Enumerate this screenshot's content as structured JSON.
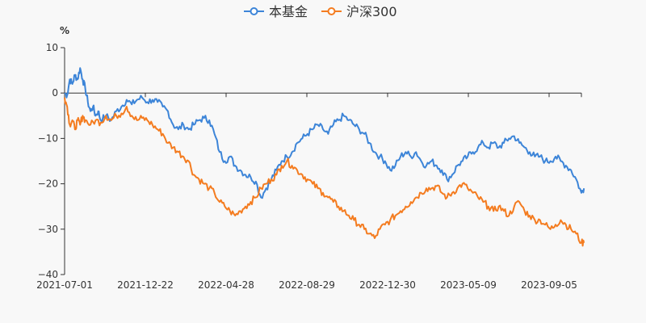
{
  "chart_data": {
    "type": "line",
    "unit": "%",
    "ylim": [
      -40,
      10
    ],
    "yticks": [
      10,
      0,
      -10,
      -20,
      -30,
      -40
    ],
    "xtick_labels": [
      "2021-07-01",
      "2021-12-22",
      "2022-04-28",
      "2022-08-29",
      "2022-12-30",
      "2023-05-09",
      "2023-09-05"
    ],
    "x_range": [
      0,
      100
    ],
    "legend": [
      "本基金",
      "沪深300"
    ],
    "colors": {
      "fund": "#3d85d8",
      "index": "#f47c20",
      "axis": "#333333"
    },
    "series": [
      {
        "name": "本基金",
        "key": "fund",
        "points": [
          [
            0,
            0
          ],
          [
            0.5,
            -0.5
          ],
          [
            1,
            3
          ],
          [
            1.5,
            2
          ],
          [
            2,
            4
          ],
          [
            2.5,
            3
          ],
          [
            3,
            5.5
          ],
          [
            3.5,
            3
          ],
          [
            4,
            1
          ],
          [
            4.5,
            -2
          ],
          [
            5,
            -4
          ],
          [
            5.5,
            -3
          ],
          [
            6,
            -5
          ],
          [
            6.5,
            -4
          ],
          [
            7,
            -6
          ],
          [
            8,
            -5
          ],
          [
            9,
            -6
          ],
          [
            10,
            -4
          ],
          [
            11,
            -3
          ],
          [
            12,
            -1.5
          ],
          [
            13,
            -2.5
          ],
          [
            14,
            -1.5
          ],
          [
            15,
            -1
          ],
          [
            16,
            -2
          ],
          [
            17,
            -1.5
          ],
          [
            18,
            -2
          ],
          [
            19,
            -3
          ],
          [
            20,
            -4
          ],
          [
            21,
            -7
          ],
          [
            22,
            -8
          ],
          [
            23,
            -7
          ],
          [
            24,
            -8
          ],
          [
            25,
            -7
          ],
          [
            26,
            -6
          ],
          [
            27,
            -5.5
          ],
          [
            28,
            -6
          ],
          [
            29,
            -9
          ],
          [
            30,
            -13
          ],
          [
            31,
            -15
          ],
          [
            32,
            -14
          ],
          [
            33,
            -16
          ],
          [
            34,
            -17
          ],
          [
            35,
            -18
          ],
          [
            36,
            -18.5
          ],
          [
            37,
            -19.5
          ],
          [
            38,
            -23
          ],
          [
            39,
            -21
          ],
          [
            40,
            -19
          ],
          [
            41,
            -17
          ],
          [
            42,
            -15
          ],
          [
            43,
            -14
          ],
          [
            44,
            -13
          ],
          [
            45,
            -11
          ],
          [
            46,
            -10
          ],
          [
            47,
            -9
          ],
          [
            48,
            -8
          ],
          [
            49,
            -7
          ],
          [
            50,
            -8
          ],
          [
            51,
            -9
          ],
          [
            52,
            -7
          ],
          [
            53,
            -6
          ],
          [
            54,
            -5
          ],
          [
            55,
            -6
          ],
          [
            56,
            -7
          ],
          [
            57,
            -8
          ],
          [
            58,
            -9
          ],
          [
            59,
            -11
          ],
          [
            60,
            -13
          ],
          [
            61,
            -14
          ],
          [
            62,
            -15
          ],
          [
            63,
            -17
          ],
          [
            64,
            -16
          ],
          [
            65,
            -14
          ],
          [
            66,
            -13
          ],
          [
            67,
            -14
          ],
          [
            68,
            -13
          ],
          [
            69,
            -15
          ],
          [
            70,
            -16
          ],
          [
            71,
            -15
          ],
          [
            72,
            -16
          ],
          [
            73,
            -17
          ],
          [
            74,
            -19
          ],
          [
            75,
            -18
          ],
          [
            76,
            -16
          ],
          [
            77,
            -15
          ],
          [
            78,
            -14
          ],
          [
            79,
            -13
          ],
          [
            80,
            -12
          ],
          [
            81,
            -11
          ],
          [
            82,
            -12
          ],
          [
            83,
            -11
          ],
          [
            84,
            -12
          ],
          [
            85,
            -11
          ],
          [
            86,
            -10
          ],
          [
            87,
            -9.5
          ],
          [
            88,
            -11
          ],
          [
            89,
            -12
          ],
          [
            90,
            -13
          ],
          [
            91,
            -14
          ],
          [
            92,
            -14
          ],
          [
            93,
            -15
          ],
          [
            94,
            -15
          ],
          [
            95,
            -14
          ],
          [
            96,
            -15
          ],
          [
            97,
            -16
          ],
          [
            98,
            -17
          ],
          [
            99,
            -19
          ],
          [
            100,
            -22
          ],
          [
            100.5,
            -21
          ]
        ]
      },
      {
        "name": "沪深300",
        "key": "index",
        "points": [
          [
            0,
            -1
          ],
          [
            0.5,
            -3
          ],
          [
            1,
            -7
          ],
          [
            1.5,
            -6
          ],
          [
            2,
            -8
          ],
          [
            2.5,
            -6
          ],
          [
            3,
            -7
          ],
          [
            3.5,
            -5
          ],
          [
            4,
            -6
          ],
          [
            5,
            -7
          ],
          [
            6,
            -6
          ],
          [
            7,
            -6.5
          ],
          [
            8,
            -5
          ],
          [
            9,
            -6
          ],
          [
            10,
            -5
          ],
          [
            11,
            -4.5
          ],
          [
            12,
            -3
          ],
          [
            13,
            -5
          ],
          [
            14,
            -6
          ],
          [
            15,
            -5.5
          ],
          [
            16,
            -6
          ],
          [
            17,
            -7
          ],
          [
            18,
            -8
          ],
          [
            19,
            -9
          ],
          [
            20,
            -11
          ],
          [
            21,
            -12
          ],
          [
            22,
            -13
          ],
          [
            23,
            -14
          ],
          [
            24,
            -15
          ],
          [
            25,
            -18
          ],
          [
            26,
            -19
          ],
          [
            27,
            -20
          ],
          [
            28,
            -21
          ],
          [
            29,
            -22
          ],
          [
            30,
            -24
          ],
          [
            31,
            -25
          ],
          [
            32,
            -26
          ],
          [
            33,
            -27
          ],
          [
            34,
            -26
          ],
          [
            35,
            -25
          ],
          [
            36,
            -24
          ],
          [
            37,
            -23
          ],
          [
            38,
            -21
          ],
          [
            39,
            -20
          ],
          [
            40,
            -19
          ],
          [
            41,
            -18
          ],
          [
            42,
            -16
          ],
          [
            43,
            -15
          ],
          [
            44,
            -16
          ],
          [
            45,
            -17
          ],
          [
            46,
            -18
          ],
          [
            47,
            -19
          ],
          [
            48,
            -20
          ],
          [
            49,
            -21
          ],
          [
            50,
            -22
          ],
          [
            51,
            -23
          ],
          [
            52,
            -24
          ],
          [
            53,
            -25
          ],
          [
            54,
            -26
          ],
          [
            55,
            -27
          ],
          [
            56,
            -28
          ],
          [
            57,
            -29
          ],
          [
            58,
            -30
          ],
          [
            59,
            -31
          ],
          [
            60,
            -32
          ],
          [
            61,
            -30
          ],
          [
            62,
            -29
          ],
          [
            63,
            -28
          ],
          [
            64,
            -27
          ],
          [
            65,
            -26
          ],
          [
            66,
            -25
          ],
          [
            67,
            -24
          ],
          [
            68,
            -23
          ],
          [
            69,
            -22
          ],
          [
            70,
            -21
          ],
          [
            71,
            -21
          ],
          [
            72,
            -20.5
          ],
          [
            73,
            -22
          ],
          [
            74,
            -23
          ],
          [
            75,
            -22
          ],
          [
            76,
            -21
          ],
          [
            77,
            -20
          ],
          [
            78,
            -21
          ],
          [
            79,
            -22
          ],
          [
            80,
            -23
          ],
          [
            81,
            -24
          ],
          [
            82,
            -25
          ],
          [
            83,
            -26
          ],
          [
            84,
            -25
          ],
          [
            85,
            -26
          ],
          [
            86,
            -27
          ],
          [
            87,
            -25
          ],
          [
            88,
            -24
          ],
          [
            89,
            -26
          ],
          [
            90,
            -27
          ],
          [
            91,
            -28
          ],
          [
            92,
            -28
          ],
          [
            93,
            -29
          ],
          [
            94,
            -30
          ],
          [
            95,
            -29
          ],
          [
            96,
            -28
          ],
          [
            97,
            -29
          ],
          [
            98,
            -30
          ],
          [
            99,
            -31
          ],
          [
            100,
            -33
          ],
          [
            100.5,
            -33
          ]
        ]
      }
    ]
  }
}
